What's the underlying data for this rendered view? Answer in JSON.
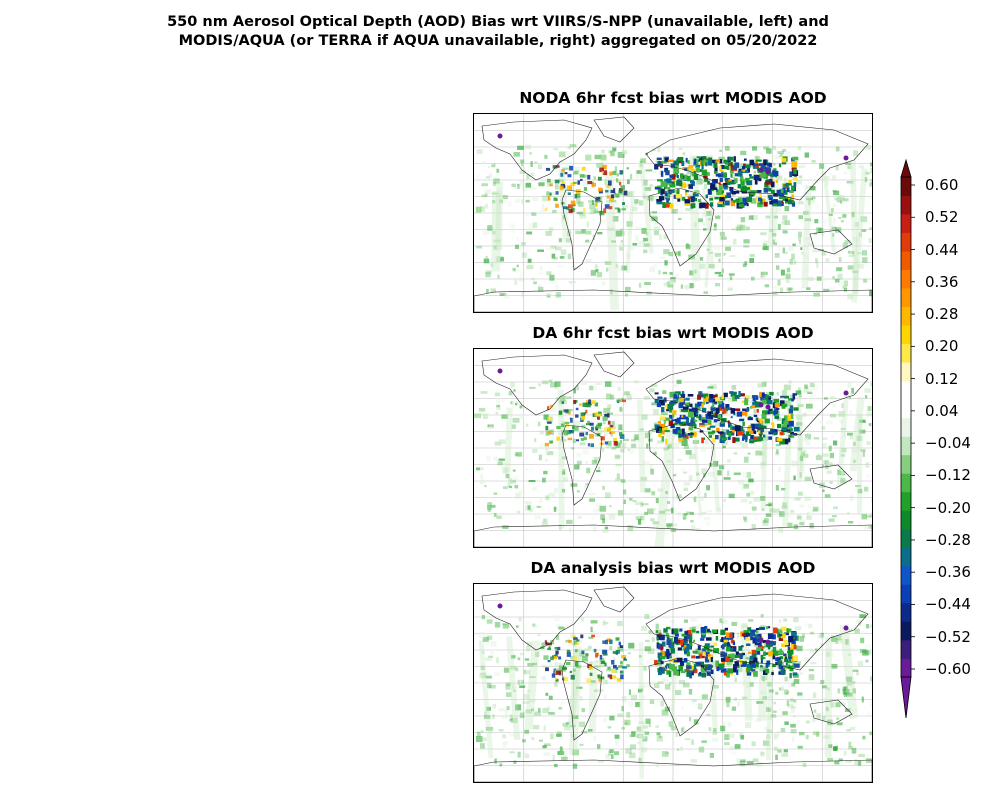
{
  "figure": {
    "title_line1": "550 nm Aerosol Optical Depth (AOD) Bias wrt VIIRS/S-NPP (unavailable, left) and",
    "title_line2": "MODIS/AQUA (or TERRA if AQUA unavailable, right) aggregated on 05/20/2022"
  },
  "panels": [
    {
      "title": "NODA 6hr fcst bias wrt MODIS AOD"
    },
    {
      "title": "DA 6hr fcst bias wrt MODIS AOD"
    },
    {
      "title": "DA analysis bias wrt MODIS AOD"
    }
  ],
  "colorbar": {
    "tick_labels": [
      "0.60",
      "0.52",
      "0.44",
      "0.36",
      "0.28",
      "0.20",
      "0.12",
      "0.04",
      "−0.04",
      "−0.12",
      "−0.20",
      "−0.28",
      "−0.36",
      "−0.44",
      "−0.52",
      "−0.60"
    ],
    "min": -0.6,
    "max": 0.6,
    "extend": "both",
    "colors": [
      "#6a1b9a",
      "#3b1f7a",
      "#0b1a5e",
      "#0b2a8a",
      "#0a3fb5",
      "#0d55c8",
      "#0b6e8a",
      "#0b7a4a",
      "#0f8a2a",
      "#22a12a",
      "#4cb84a",
      "#86cf7e",
      "#c2e6bd",
      "#eaf4e8",
      "#ffffff",
      "#ffffff",
      "#fff7c2",
      "#ffe84a",
      "#ffd500",
      "#ffb800",
      "#ff9800",
      "#ff7a00",
      "#f25a00",
      "#e23a0a",
      "#c81e14",
      "#9a1010",
      "#6a0b0b"
    ]
  }
}
